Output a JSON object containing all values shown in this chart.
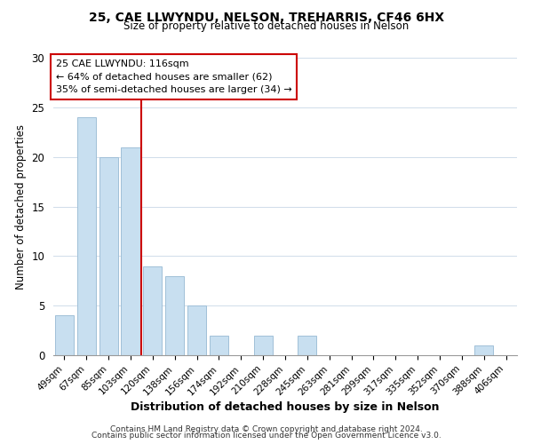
{
  "title1": "25, CAE LLWYNDU, NELSON, TREHARRIS, CF46 6HX",
  "title2": "Size of property relative to detached houses in Nelson",
  "xlabel": "Distribution of detached houses by size in Nelson",
  "ylabel": "Number of detached properties",
  "bar_labels": [
    "49sqm",
    "67sqm",
    "85sqm",
    "103sqm",
    "120sqm",
    "138sqm",
    "156sqm",
    "174sqm",
    "192sqm",
    "210sqm",
    "228sqm",
    "245sqm",
    "263sqm",
    "281sqm",
    "299sqm",
    "317sqm",
    "335sqm",
    "352sqm",
    "370sqm",
    "388sqm",
    "406sqm"
  ],
  "bar_values": [
    4,
    24,
    20,
    21,
    9,
    8,
    5,
    2,
    0,
    2,
    0,
    2,
    0,
    0,
    0,
    0,
    0,
    0,
    0,
    1,
    0
  ],
  "bar_color": "#c8dff0",
  "bar_edge_color": "#a0c0d8",
  "annotation_line1": "25 CAE LLWYNDU: 116sqm",
  "annotation_line2": "← 64% of detached houses are smaller (62)",
  "annotation_line3": "35% of semi-detached houses are larger (34) →",
  "box_edge_color": "#cc0000",
  "vline_color": "#cc0000",
  "ylim": [
    0,
    30
  ],
  "yticks": [
    0,
    5,
    10,
    15,
    20,
    25,
    30
  ],
  "footer1": "Contains HM Land Registry data © Crown copyright and database right 2024.",
  "footer2": "Contains public sector information licensed under the Open Government Licence v3.0."
}
